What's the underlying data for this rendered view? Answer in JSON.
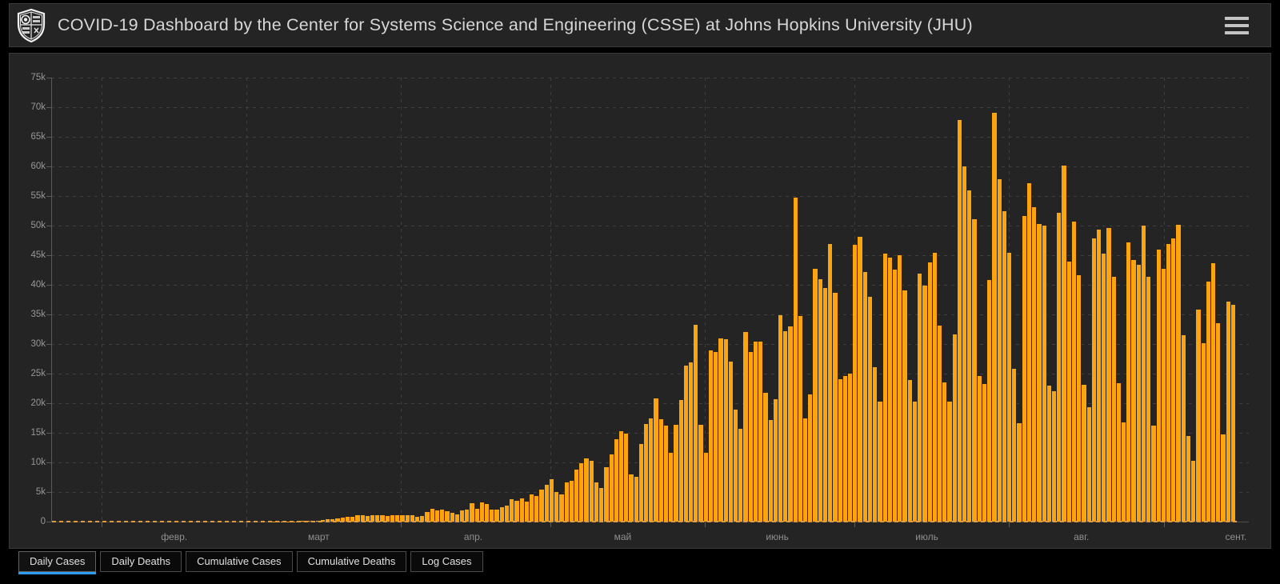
{
  "header": {
    "title": "COVID-19 Dashboard by the Center for Systems Science and Engineering (CSSE) at Johns Hopkins University (JHU)",
    "logo": "jhu-shield-crest",
    "menu_icon": "hamburger-menu"
  },
  "colors": {
    "page_bg": "#000000",
    "panel_bg": "#242424",
    "bar_orange": "#FCA40D",
    "accent_blue": "#2b9cf2",
    "grid_line": "#3f3f3f",
    "axis_line": "#5a5a5a",
    "tick_label": "#979797",
    "zero_line_orange": "#df9b3c",
    "title_text": "#d6d6d6"
  },
  "tabs": [
    {
      "label": "Daily Cases",
      "active": true
    },
    {
      "label": "Daily Deaths",
      "active": false
    },
    {
      "label": "Cumulative Cases",
      "active": false
    },
    {
      "label": "Cumulative Deaths",
      "active": false
    },
    {
      "label": "Log Cases",
      "active": false
    }
  ],
  "chart_data": {
    "type": "bar",
    "title": "Daily Cases",
    "legend": "none",
    "grid": "dashed",
    "bar_color": "#FCA40D",
    "ylim": [
      0,
      75000
    ],
    "y_tick_step": 5000,
    "y_tick_labels": [
      "75k",
      "70k",
      "65k",
      "60k",
      "55k",
      "50k",
      "45k",
      "40k",
      "35k",
      "30k",
      "25k",
      "20k",
      "15k",
      "10k",
      "5k",
      "0"
    ],
    "x_unit": "day",
    "x_months": [
      {
        "label": "февр.",
        "start_index": 10
      },
      {
        "label": "март",
        "start_index": 39
      },
      {
        "label": "апр.",
        "start_index": 70
      },
      {
        "label": "май",
        "start_index": 100
      },
      {
        "label": "июнь",
        "start_index": 131
      },
      {
        "label": "июль",
        "start_index": 161
      },
      {
        "label": "авг.",
        "start_index": 192
      },
      {
        "label": "сент.",
        "start_index": 223
      }
    ],
    "values": [
      0,
      0,
      0,
      0,
      0,
      0,
      0,
      0,
      0,
      0,
      0,
      0,
      0,
      0,
      0,
      0,
      0,
      0,
      0,
      0,
      0,
      0,
      0,
      0,
      0,
      0,
      0,
      0,
      0,
      0,
      0,
      0,
      0,
      0,
      0,
      1,
      0,
      0,
      1,
      2,
      2,
      3,
      5,
      9,
      13,
      18,
      25,
      38,
      52,
      66,
      98,
      121,
      137,
      163,
      310,
      345,
      408,
      486,
      620,
      793,
      880,
      1021,
      1046,
      960,
      1100,
      1140,
      1060,
      980,
      1020,
      1138,
      1119,
      1074,
      1146,
      852,
      926,
      1661,
      2210,
      1930,
      2092,
      1781,
      1442,
      1261,
      1832,
      2058,
      3058,
      2105,
      3257,
      2917,
      1997,
      2089,
      2498,
      2678,
      3735,
      3503,
      3970,
      3379,
      4613,
      4293,
      5385,
      6276,
      7218,
      4970,
      4588,
      6633,
      6935,
      8853,
      9888,
      10611,
      10222,
      6638,
      5632,
      9258,
      11385,
      13944,
      15305,
      14919,
      7938,
      7569,
      13140,
      16508,
      17408,
      20803,
      17273,
      16263,
      11687,
      16324,
      20599,
      26417,
      26928,
      33274,
      16409,
      11598,
      28936,
      28633,
      30925,
      30830,
      27075,
      18912,
      15654,
      32091,
      28633,
      30412,
      30465,
      21704,
      17110,
      20647,
      34918,
      32188,
      32913,
      54771,
      34666,
      17459,
      21432,
      42725,
      40945,
      39483,
      46860,
      38693,
      24052,
      24654,
      25043,
      46712,
      48105,
      42223,
      37923,
      26051,
      20229,
      45305,
      44571,
      42619,
      45048,
      39023,
      23869,
      20286,
      41857,
      39924,
      43829,
      45403,
      33100,
      23529,
      20257,
      31600,
      67860,
      59961,
      55891,
      51147,
      24578,
      23284,
      40816,
      69074,
      57837,
      52383,
      45407,
      25800,
      16641,
      51603,
      57152,
      53139,
      50230,
      49970,
      23010,
      22048,
      52160,
      60091,
      43896,
      50644,
      41576,
      23101,
      19373,
      47784,
      49298,
      45323,
      49577,
      41350,
      23421,
      16813,
      47134,
      44235,
      43412,
      50032,
      41350,
      16158,
      45961,
      42659,
      46934,
      47773,
      50163,
      31465,
      14521,
      10273,
      35816,
      30168,
      40557,
      43718,
      33523,
      14768,
      37169,
      36653
    ]
  }
}
